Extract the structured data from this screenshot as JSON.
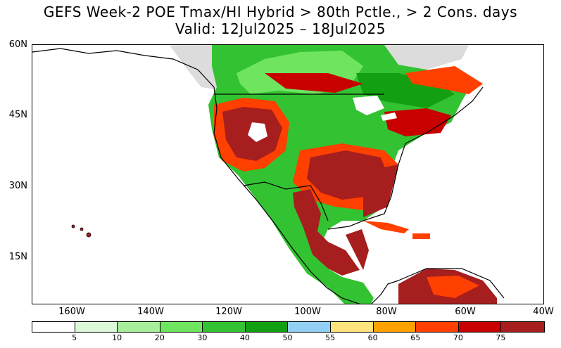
{
  "title": {
    "line1": "GEFS Week-2 POE Tmax/HI Hybrid > 80th Pctle., > 2 Cons. days",
    "line2": "Valid: 12Jul2025 – 18Jul2025"
  },
  "axes": {
    "lat_labels": [
      "60N",
      "45N",
      "30N",
      "15N"
    ],
    "lon_labels": [
      "160W",
      "140W",
      "120W",
      "100W",
      "80W",
      "60W",
      "40W"
    ]
  },
  "colorbar": {
    "colors": [
      "#ffffff",
      "#ddf8d8",
      "#a6ee9a",
      "#6ee45f",
      "#33c232",
      "#12a012",
      "#92cff5",
      "#ffe37c",
      "#ffa200",
      "#ff4000",
      "#c80000",
      "#a61e1e"
    ],
    "labels": [
      "5",
      "10",
      "20",
      "30",
      "40",
      "50",
      "55",
      "60",
      "65",
      "70",
      "75"
    ]
  },
  "legend_colors": {
    "land_mask": "#dcdcdc",
    "coast": "#000000"
  }
}
